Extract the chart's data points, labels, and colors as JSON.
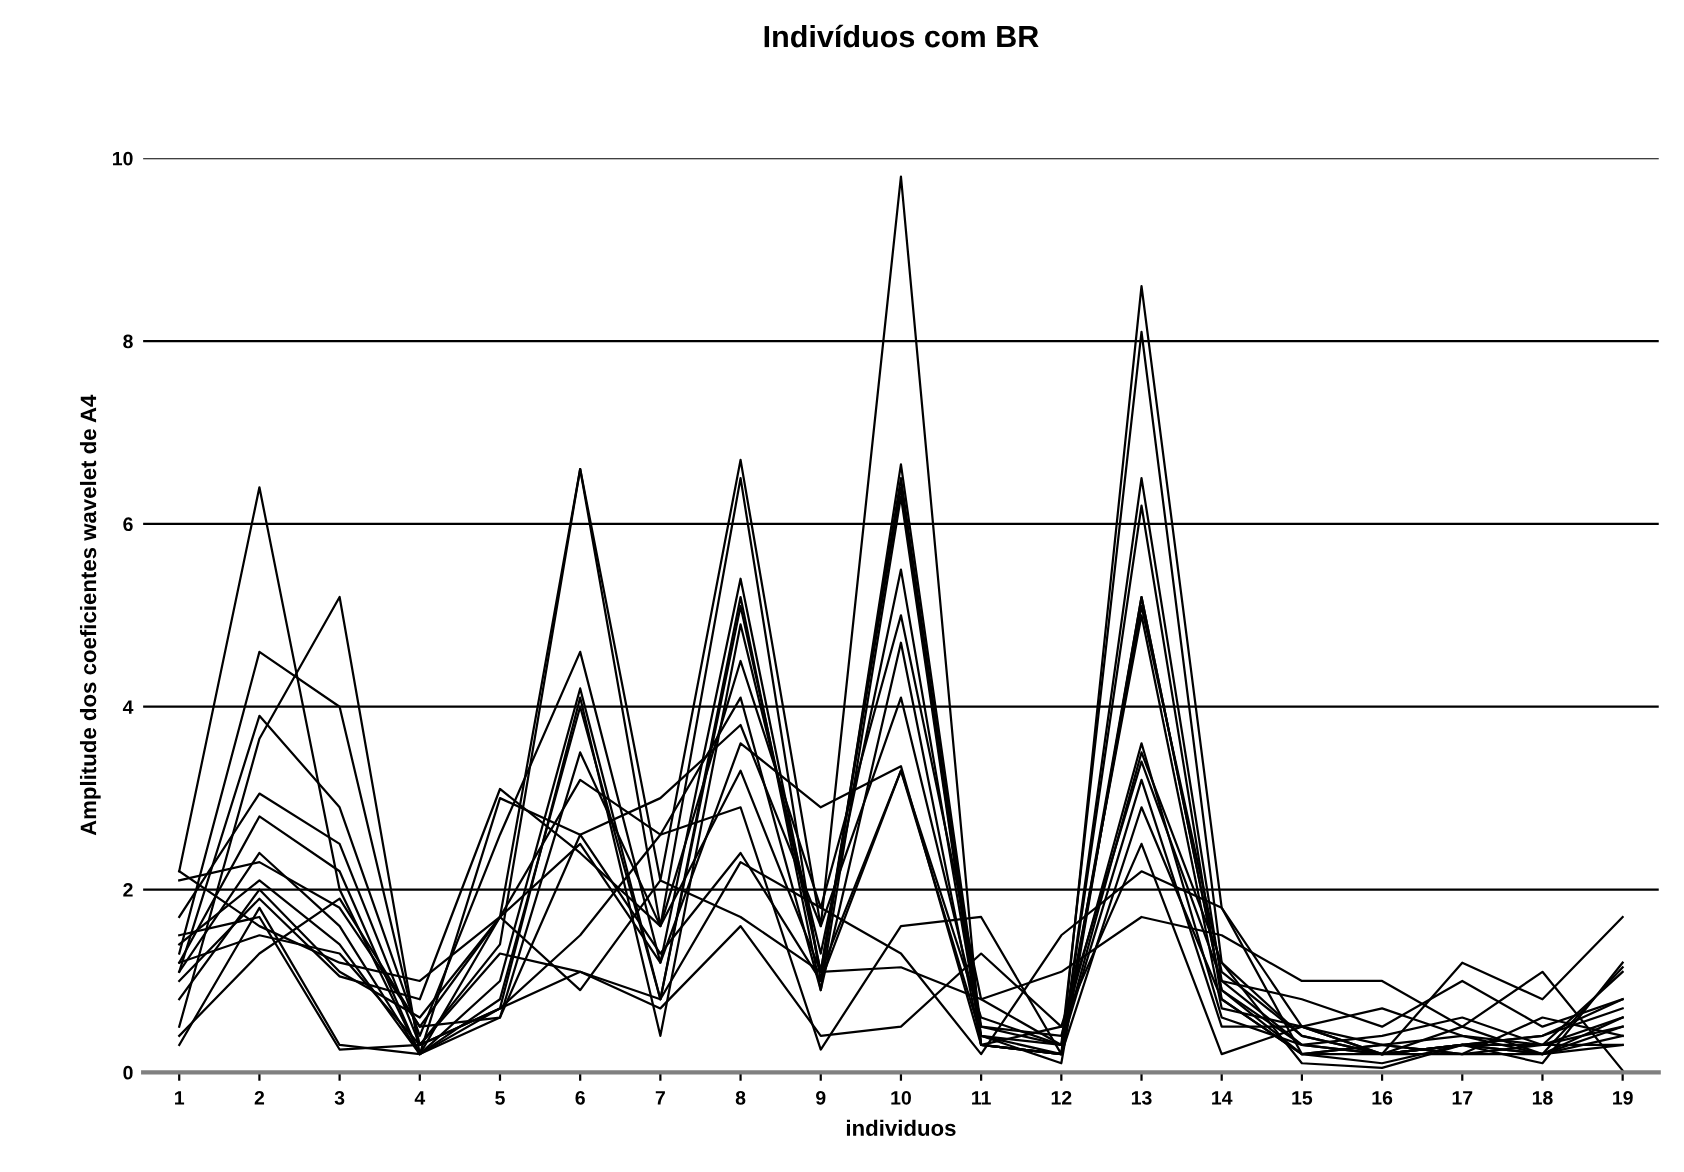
{
  "chart_data": {
    "type": "line",
    "title": "Indivíduos com BR",
    "xlabel": "individuos",
    "ylabel": "Amplitude dos coeficientes wavelet de A4",
    "categories": [
      "1",
      "2",
      "3",
      "4",
      "5",
      "6",
      "7",
      "8",
      "9",
      "10",
      "11",
      "12",
      "13",
      "14",
      "15",
      "16",
      "17",
      "18",
      "19"
    ],
    "ylim": [
      0,
      10
    ],
    "yticks": [
      0,
      2,
      4,
      6,
      8,
      10
    ],
    "grid": "y",
    "marker": "none",
    "line_style": "solid",
    "legend": false,
    "series": [
      {
        "color": "#000000",
        "values": [
          2.2,
          6.4,
          2.0,
          0.2,
          1.7,
          6.6,
          2.1,
          6.7,
          1.6,
          9.8,
          0.3,
          0.2,
          8.6,
          1.8,
          0.2,
          0.3,
          0.4,
          0.2,
          0.5
        ]
      },
      {
        "color": "#000000",
        "values": [
          1.3,
          4.6,
          4.0,
          0.3,
          1.4,
          6.6,
          1.6,
          6.5,
          1.0,
          6.65,
          0.5,
          0.3,
          8.1,
          1.2,
          0.4,
          0.2,
          0.3,
          0.3,
          1.1
        ]
      },
      {
        "color": "#000000",
        "values": [
          1.1,
          3.9,
          2.9,
          0.4,
          2.6,
          4.6,
          1.2,
          5.4,
          1.1,
          6.5,
          0.4,
          0.2,
          6.5,
          1.0,
          0.3,
          0.2,
          0.2,
          0.2,
          0.6
        ]
      },
      {
        "color": "#000000",
        "values": [
          0.5,
          3.65,
          5.2,
          0.2,
          1.0,
          4.2,
          0.8,
          5.2,
          0.9,
          6.3,
          0.3,
          0.2,
          6.2,
          0.8,
          0.2,
          0.1,
          0.3,
          0.4,
          0.8
        ]
      },
      {
        "color": "#000000",
        "values": [
          1.7,
          3.05,
          2.5,
          0.3,
          0.7,
          4.1,
          0.4,
          4.9,
          1.3,
          5.5,
          0.4,
          0.1,
          5.2,
          0.9,
          0.3,
          0.2,
          0.5,
          0.2,
          0.4
        ]
      },
      {
        "color": "#000000",
        "values": [
          1.2,
          2.8,
          2.2,
          0.2,
          0.6,
          3.5,
          1.6,
          4.5,
          1.8,
          5.0,
          0.8,
          0.3,
          5.0,
          0.7,
          0.5,
          0.3,
          0.2,
          0.3,
          0.5
        ]
      },
      {
        "color": "#000000",
        "values": [
          2.1,
          2.3,
          1.8,
          0.5,
          1.7,
          3.2,
          2.6,
          4.1,
          0.9,
          4.7,
          0.3,
          0.2,
          5.1,
          1.1,
          0.4,
          0.2,
          0.3,
          0.1,
          1.2
        ]
      },
      {
        "color": "#000000",
        "values": [
          1.4,
          2.1,
          1.4,
          0.2,
          3.0,
          2.6,
          3.0,
          3.8,
          1.6,
          4.1,
          0.5,
          0.4,
          3.6,
          0.6,
          0.3,
          0.4,
          0.6,
          0.3,
          0.3
        ]
      },
      {
        "color": "#000000",
        "values": [
          0.8,
          2.0,
          1.1,
          0.6,
          1.7,
          2.5,
          1.2,
          3.6,
          2.9,
          3.35,
          0.3,
          0.5,
          3.4,
          1.0,
          0.8,
          0.5,
          1.0,
          0.5,
          0.8
        ]
      },
      {
        "color": "#000000",
        "values": [
          1.0,
          1.9,
          1.05,
          0.8,
          3.1,
          2.4,
          1.6,
          3.3,
          1.1,
          3.3,
          0.6,
          0.3,
          3.2,
          0.5,
          0.5,
          0.7,
          0.4,
          0.3,
          0.6
        ]
      },
      {
        "color": "#000000",
        "values": [
          0.3,
          1.8,
          0.3,
          0.2,
          0.7,
          1.5,
          2.6,
          2.9,
          0.25,
          1.6,
          1.7,
          0.2,
          2.9,
          0.8,
          0.2,
          0.3,
          0.2,
          0.6,
          0.4
        ]
      },
      {
        "color": "#000000",
        "values": [
          1.5,
          1.7,
          0.25,
          0.3,
          1.3,
          1.1,
          0.8,
          2.3,
          1.8,
          1.3,
          0.2,
          1.5,
          2.2,
          1.8,
          0.5,
          0.2,
          0.3,
          0.2,
          0.3
        ]
      },
      {
        "color": "#000000",
        "values": [
          2.2,
          1.6,
          1.2,
          1.0,
          1.7,
          0.9,
          2.1,
          1.7,
          1.1,
          1.15,
          0.8,
          1.1,
          1.7,
          1.5,
          1.0,
          1.0,
          0.5,
          1.1,
          0.02
        ]
      },
      {
        "color": "#000000",
        "values": [
          1.2,
          1.5,
          1.3,
          0.3,
          0.7,
          1.1,
          0.7,
          1.6,
          0.4,
          0.5,
          1.3,
          0.5,
          2.5,
          0.2,
          0.5,
          0.2,
          1.2,
          0.8,
          1.7
        ]
      },
      {
        "color": "#000000",
        "values": [
          0.4,
          1.3,
          1.9,
          0.5,
          0.6,
          2.6,
          1.3,
          2.4,
          1.0,
          3.3,
          0.4,
          0.3,
          3.5,
          1.2,
          0.1,
          0.05,
          0.3,
          0.2,
          1.15
        ]
      },
      {
        "color": "#000000",
        "values": [
          1.1,
          2.4,
          1.6,
          0.2,
          0.8,
          4.0,
          0.8,
          5.1,
          1.1,
          6.4,
          0.3,
          0.2,
          5.2,
          0.9,
          0.2,
          0.2,
          0.3,
          0.4,
          0.7
        ]
      }
    ]
  }
}
